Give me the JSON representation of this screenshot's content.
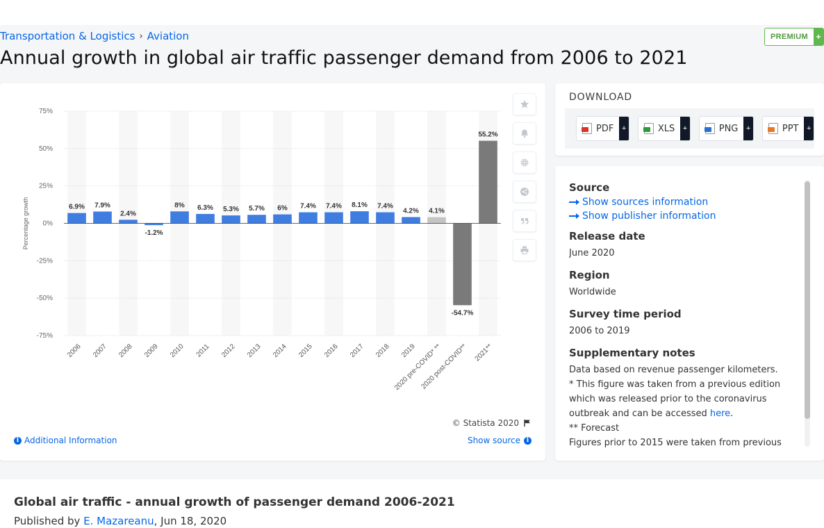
{
  "breadcrumb": {
    "category": "Transportation & Logistics",
    "separator": "›",
    "subcategory": "Aviation"
  },
  "premium": {
    "label": "PREMIUM",
    "plus": "+"
  },
  "title": "Annual growth in global air traffic passenger demand from 2006 to 2021",
  "chart_data": {
    "type": "bar",
    "categories": [
      "2006",
      "2007",
      "2008",
      "2009",
      "2010",
      "2011",
      "2012",
      "2013",
      "2014",
      "2015",
      "2016",
      "2017",
      "2018",
      "2019",
      "2020 pre-COVID* **",
      "2020 post-COVID**",
      "2021**"
    ],
    "values": [
      6.9,
      7.9,
      2.4,
      -1.2,
      8,
      6.3,
      5.3,
      5.7,
      6,
      7.4,
      7.4,
      8.1,
      7.4,
      4.2,
      4.1,
      -54.7,
      55.2
    ],
    "value_labels": [
      "6.9%",
      "7.9%",
      "2.4%",
      "-1.2%",
      "8%",
      "6.3%",
      "5.3%",
      "5.7%",
      "6%",
      "7.4%",
      "7.4%",
      "8.1%",
      "7.4%",
      "4.2%",
      "4.1%",
      "-54.7%",
      "55.2%"
    ],
    "bar_colors": [
      "#3f7de0",
      "#3f7de0",
      "#3f7de0",
      "#3f7de0",
      "#3f7de0",
      "#3f7de0",
      "#3f7de0",
      "#3f7de0",
      "#3f7de0",
      "#3f7de0",
      "#3f7de0",
      "#3f7de0",
      "#3f7de0",
      "#3f7de0",
      "#c4c4c4",
      "#7a7a7a",
      "#7a7a7a"
    ],
    "ylabel": "Percentage growth",
    "ylim": [
      -75,
      75
    ],
    "yticks": [
      75,
      50,
      25,
      0,
      -25,
      -50,
      -75
    ],
    "ytick_labels": [
      "75%",
      "50%",
      "25%",
      "0%",
      "-25%",
      "-50%",
      "-75%"
    ],
    "grid": true
  },
  "tools": [
    "star-icon",
    "bell-icon",
    "gear-icon",
    "share-icon",
    "quote-icon",
    "print-icon"
  ],
  "copyright": "© Statista 2020",
  "additional_info": "Additional Information",
  "show_source": "Show source",
  "download": {
    "title": "DOWNLOAD",
    "buttons": [
      {
        "label": "PDF",
        "color": "#d9342b"
      },
      {
        "label": "XLS",
        "color": "#2e9a3e"
      },
      {
        "label": "PNG",
        "color": "#2b6fd1"
      },
      {
        "label": "PPT",
        "color": "#e8782a"
      }
    ],
    "plus": "+"
  },
  "info": {
    "source_heading": "Source",
    "show_sources": "Show sources information",
    "show_publisher": "Show publisher information",
    "release_heading": "Release date",
    "release_value": "June 2020",
    "region_heading": "Region",
    "region_value": "Worldwide",
    "survey_heading": "Survey time period",
    "survey_value": "2006 to 2019",
    "notes_heading": "Supplementary notes",
    "note_1": "Data based on revenue passenger kilometers.",
    "note_2a": "* This figure was taken from a previous edition which was released prior to the coronavirus outbreak and can be accessed ",
    "note_2_link": "here",
    "note_2b": ".",
    "note_3": "** Forecast",
    "note_4": "Figures prior to 2015 were taken from previous"
  },
  "bottom": {
    "title": "Global air traffic - annual growth of passenger demand 2006-2021",
    "published_prefix": "Published by ",
    "author": "E. Mazareanu",
    "date": ", Jun 18, 2020"
  }
}
